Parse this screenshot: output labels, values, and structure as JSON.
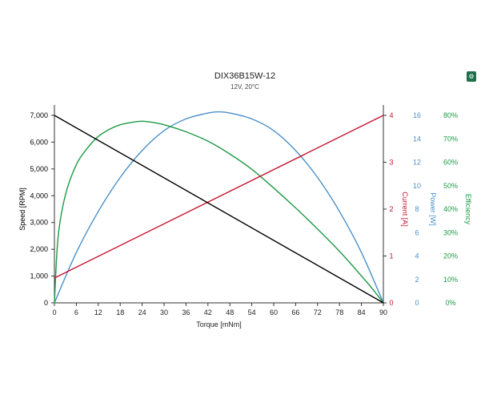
{
  "toolbar": {
    "icon": "motor-icon",
    "icon_glyph": "⚙"
  },
  "chart_data": {
    "type": "line",
    "title": "DIX36B15W-12",
    "subtitle": "12V, 20°C",
    "xlabel": "Torque [mNm]",
    "xlim": [
      0,
      90
    ],
    "xticks": [
      0,
      6,
      12,
      18,
      24,
      30,
      36,
      42,
      48,
      54,
      60,
      66,
      72,
      78,
      84,
      90
    ],
    "axes": {
      "speed": {
        "label": "Speed [RPM]",
        "color": "#000000",
        "range": [
          0,
          7000
        ],
        "ticks": [
          0,
          1000,
          2000,
          3000,
          4000,
          5000,
          6000,
          7000
        ],
        "tick_labels": [
          "0",
          "1,000",
          "2,000",
          "3,000",
          "4,000",
          "5,000",
          "6,000",
          "7,000"
        ]
      },
      "current": {
        "label": "Current [A]",
        "color": "#c8102e",
        "range": [
          0,
          4
        ],
        "ticks": [
          0,
          1,
          2,
          3,
          4
        ],
        "tick_labels": [
          "0",
          "1",
          "2",
          "3",
          "4"
        ]
      },
      "power": {
        "label": "Power [W]",
        "color": "#4a90c8",
        "range": [
          0,
          16
        ],
        "ticks": [
          0,
          2,
          4,
          6,
          8,
          10,
          12,
          14,
          16
        ],
        "tick_labels": [
          "0",
          "2",
          "4",
          "6",
          "8",
          "10",
          "12",
          "14",
          "16"
        ]
      },
      "efficiency": {
        "label": "Efficiency",
        "color": "#1e9a45",
        "range": [
          0,
          80
        ],
        "ticks": [
          0,
          10,
          20,
          30,
          40,
          50,
          60,
          70,
          80
        ],
        "tick_labels": [
          "0%",
          "10%",
          "20%",
          "30%",
          "40%",
          "50%",
          "60%",
          "70%",
          "80%"
        ]
      }
    },
    "series": [
      {
        "axis": "speed",
        "color": "#000000",
        "x": [
          0,
          90
        ],
        "y": [
          7000,
          0
        ]
      },
      {
        "axis": "current",
        "color": "#c8102e",
        "x": [
          0,
          90
        ],
        "y": [
          0.53,
          4.0
        ]
      },
      {
        "axis": "power",
        "color": "#4a90c8",
        "x": [
          0,
          6,
          12,
          18,
          24,
          30,
          36,
          42,
          45,
          48,
          54,
          60,
          66,
          72,
          78,
          84,
          90
        ],
        "y": [
          0,
          4.3,
          7.8,
          10.7,
          13.0,
          14.7,
          15.7,
          16.2,
          16.3,
          16.2,
          15.7,
          14.7,
          13.0,
          10.7,
          7.8,
          4.3,
          0
        ]
      },
      {
        "axis": "efficiency",
        "color": "#1e9a45",
        "x": [
          0,
          1,
          3,
          6,
          9,
          12,
          15,
          18,
          21,
          24,
          27,
          30,
          36,
          42,
          48,
          54,
          60,
          66,
          72,
          78,
          84,
          87,
          90
        ],
        "y": [
          0,
          28,
          46,
          59,
          66,
          71,
          74,
          76,
          77,
          77.5,
          77,
          76,
          73,
          69,
          63.5,
          57,
          49,
          40.5,
          31.5,
          22,
          11.5,
          6,
          0
        ]
      }
    ]
  }
}
